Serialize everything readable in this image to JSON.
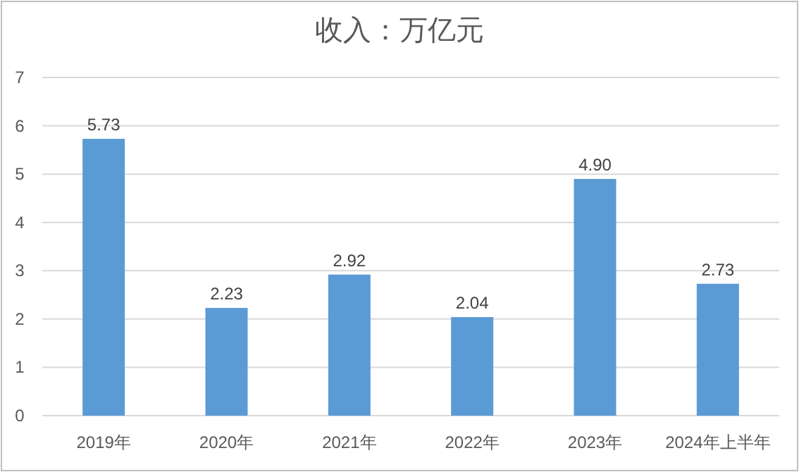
{
  "chart_data": {
    "type": "bar",
    "title": "收入：万亿元",
    "categories": [
      "2019年",
      "2020年",
      "2021年",
      "2022年",
      "2023年",
      "2024年上半年"
    ],
    "values": [
      5.73,
      2.23,
      2.92,
      2.04,
      4.9,
      2.73
    ],
    "value_labels": [
      "5.73",
      "2.23",
      "2.92",
      "2.04",
      "4.90",
      "2.73"
    ],
    "color": "#5b9bd5",
    "ylim": [
      0,
      7
    ],
    "yticks": [
      0,
      1,
      2,
      3,
      4,
      5,
      6,
      7
    ],
    "grid": "y"
  }
}
